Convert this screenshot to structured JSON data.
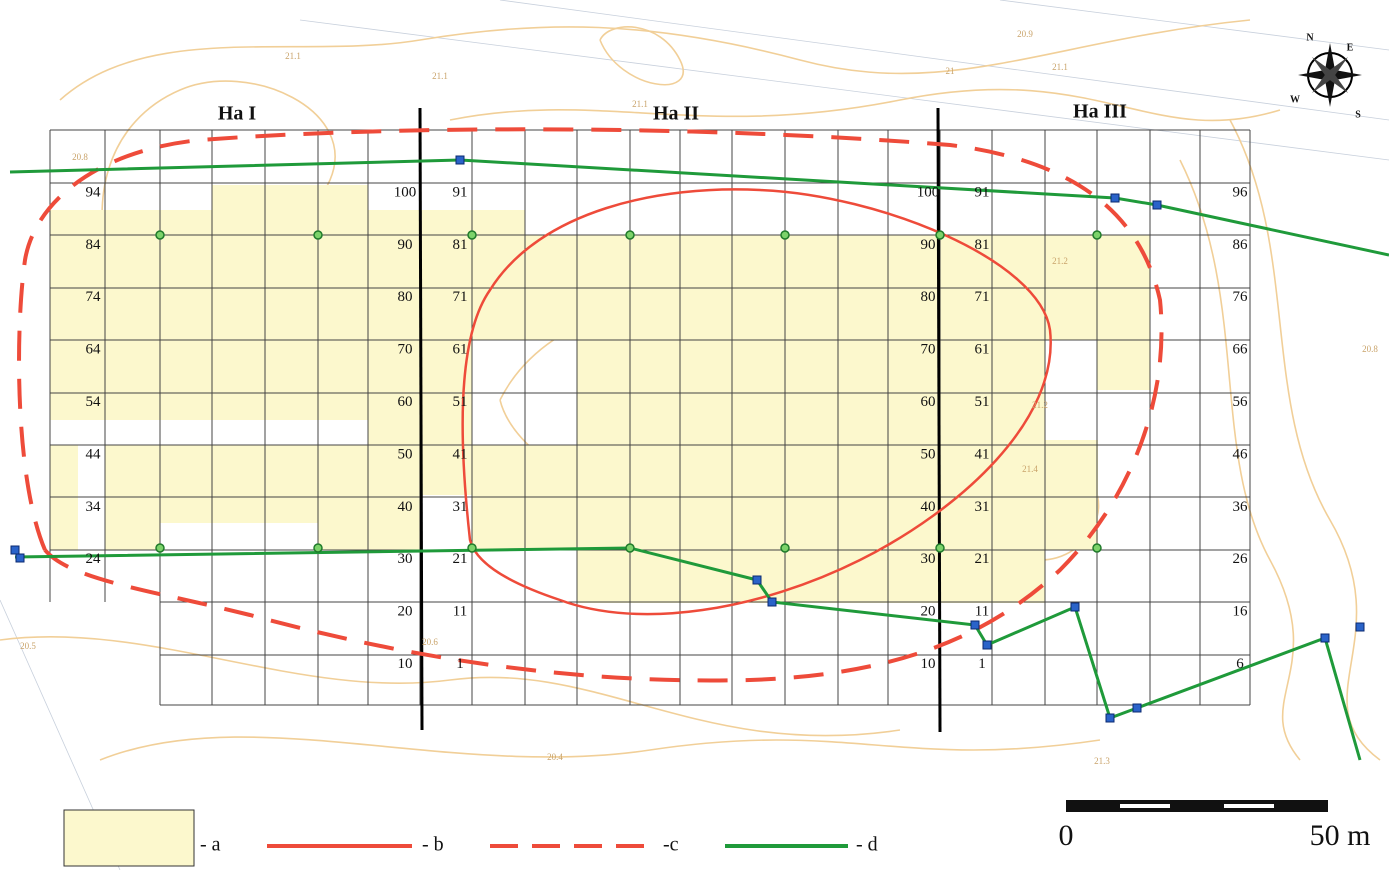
{
  "sections": [
    "Ha I",
    "Ha II",
    "Ha III"
  ],
  "grid_numbers": {
    "ha1_left": [
      94,
      84,
      74,
      64,
      54,
      44,
      34,
      24
    ],
    "ha1_right": [
      100,
      90,
      80,
      70,
      60,
      50,
      40,
      30,
      20,
      10
    ],
    "ha2_left": [
      91,
      81,
      71,
      61,
      51,
      41,
      31,
      21,
      11,
      1
    ],
    "ha2_right": [
      100,
      90,
      80,
      70,
      60,
      50,
      40,
      30,
      20,
      10
    ],
    "ha3_left": [
      91,
      81,
      71,
      61,
      51,
      41,
      31,
      21,
      11,
      1
    ],
    "ha3_right": [
      96,
      86,
      76,
      66,
      56,
      46,
      36,
      26,
      16,
      6
    ]
  },
  "contour_labels": [
    "20.8",
    "21.1",
    "21.1",
    "21.1",
    "21",
    "21.1",
    "20.9",
    "21.2",
    "21.2",
    "21.4",
    "20.8",
    "20.5",
    "20.6",
    "20.4",
    "21.3"
  ],
  "compass": [
    "N",
    "E",
    "S",
    "W"
  ],
  "legend": [
    "- a",
    "- b",
    "-c",
    "- d"
  ],
  "scale": [
    "0",
    "50 m"
  ]
}
